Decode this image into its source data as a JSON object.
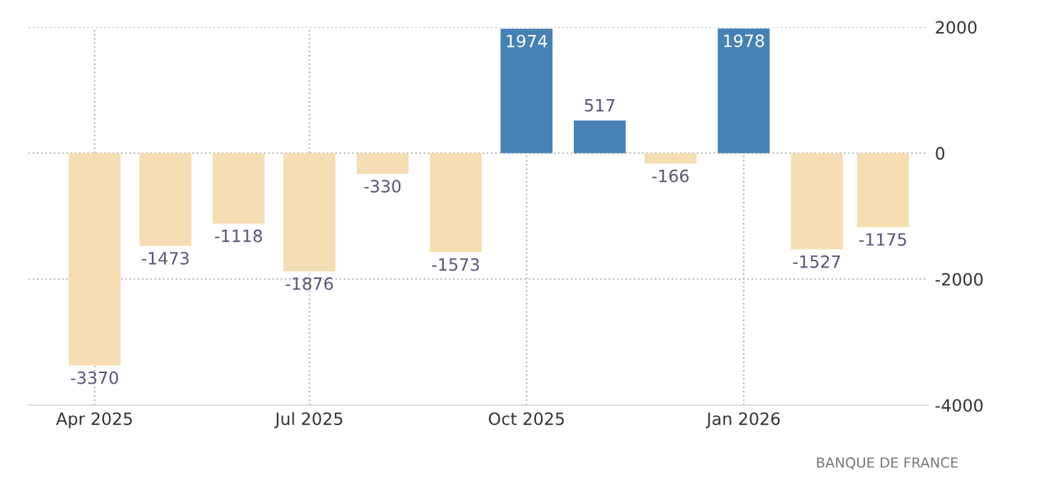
{
  "chart_data": {
    "type": "bar",
    "x": [
      "2025-04-01",
      "2025-05-01",
      "2025-06-01",
      "2025-07-01",
      "2025-08-01",
      "2025-09-01",
      "2025-10-01",
      "2025-11-01",
      "2025-12-01",
      "2026-01-01",
      "2026-02-01",
      "2026-03-01"
    ],
    "values": [
      -3370,
      -1473,
      -1118,
      -1876,
      -330,
      -1573,
      1974,
      517,
      -166,
      1978,
      -1527,
      -1175
    ],
    "colors": [
      "#f5deb3",
      "#f5deb3",
      "#f5deb3",
      "#f5deb3",
      "#f5deb3",
      "#f5deb3",
      "#4682b4",
      "#4682b4",
      "#f5deb3",
      "#4682b4",
      "#f5deb3",
      "#f5deb3"
    ],
    "data_labels": true,
    "xlim": [
      "2025-03-04",
      "2026-03-20"
    ],
    "xticks": [
      {
        "value": "2025-04-01",
        "label": "Apr 2025"
      },
      {
        "value": "2025-07-01",
        "label": "Jul 2025"
      },
      {
        "value": "2025-10-01",
        "label": "Oct 2025"
      },
      {
        "value": "2026-01-01",
        "label": "Jan 2026"
      }
    ],
    "ylim": [
      -4000,
      2000
    ],
    "yticks": [
      -4000,
      -2000,
      0,
      2000
    ],
    "grid": true,
    "annotations": [
      "BANQUE DE FRANCE"
    ]
  }
}
